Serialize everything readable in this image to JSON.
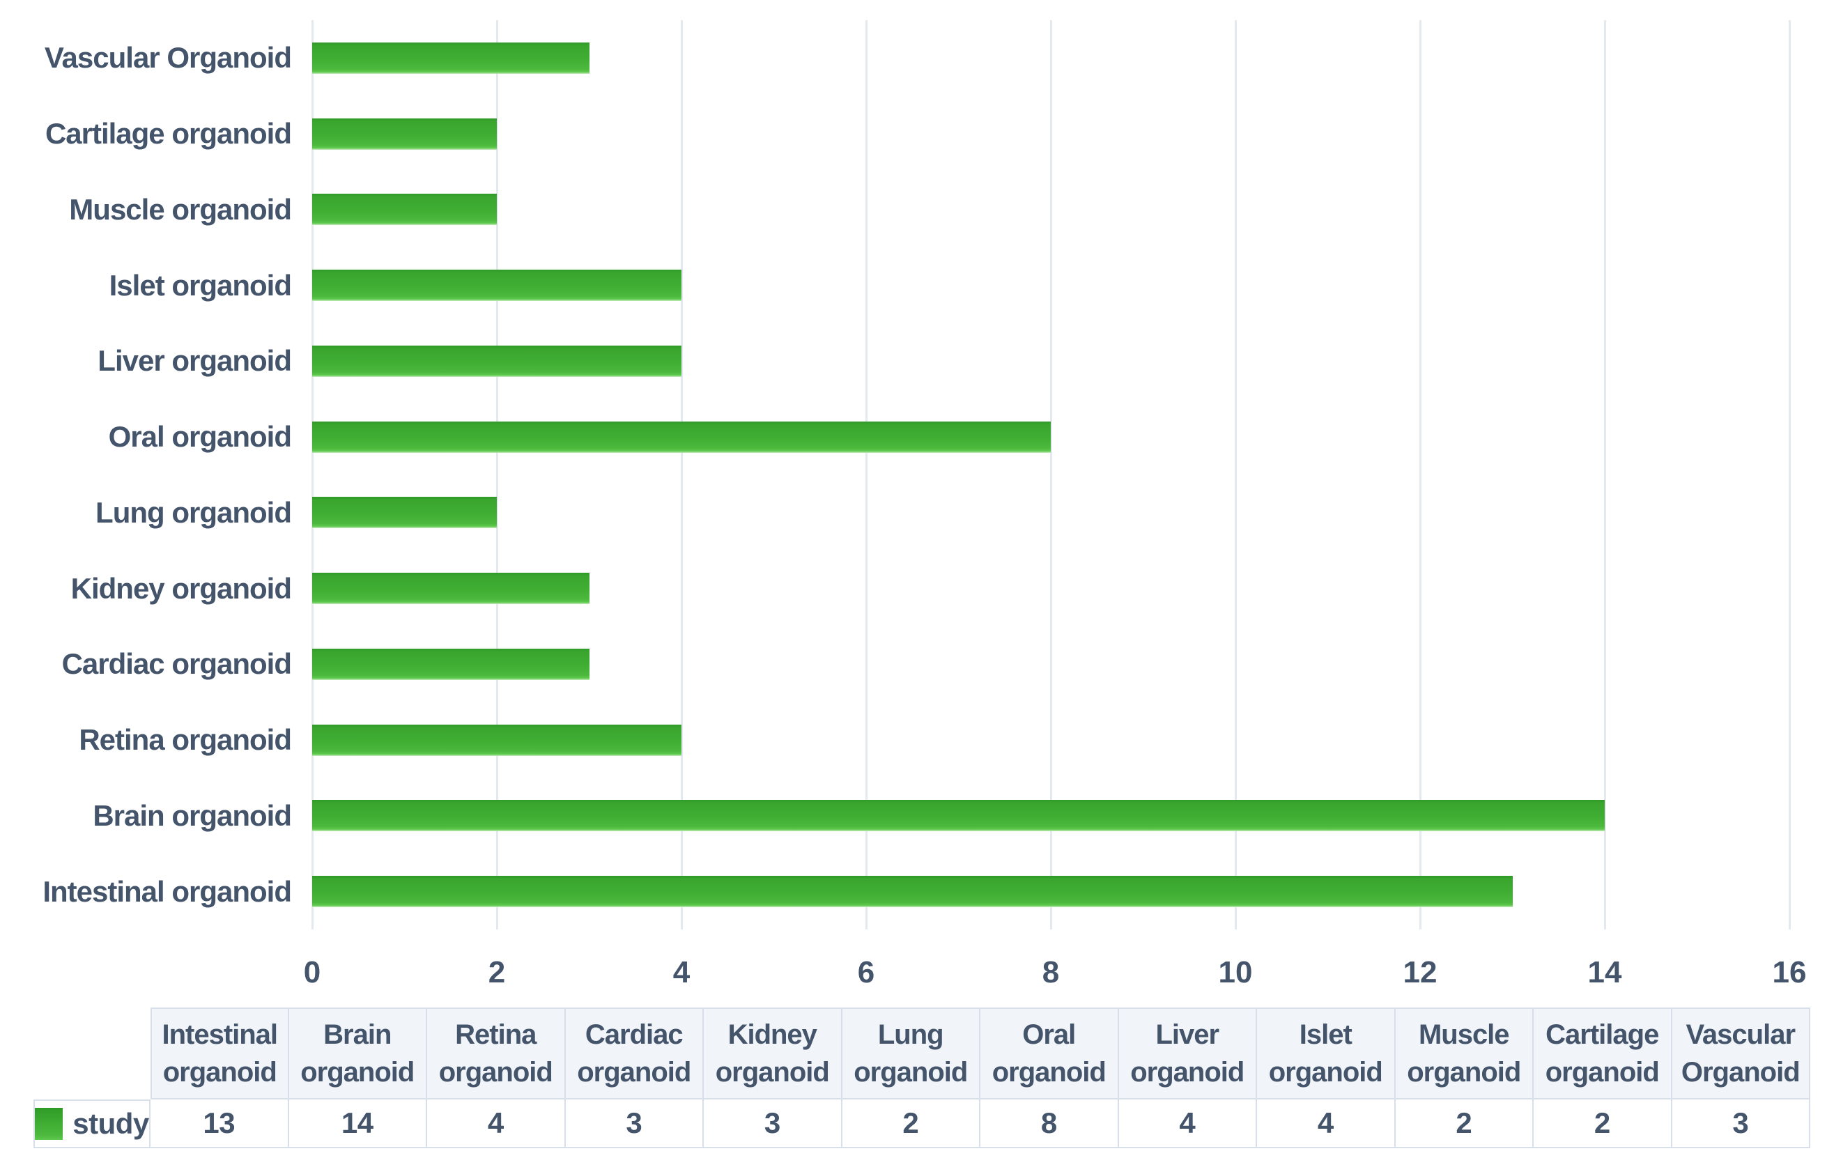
{
  "chart_data": {
    "type": "bar",
    "orientation": "horizontal",
    "title": "",
    "xlabel": "",
    "ylabel": "",
    "categories": [
      "Intestinal organoid",
      "Brain organoid",
      "Retina organoid",
      "Cardiac organoid",
      "Kidney organoid",
      "Lung organoid",
      "Oral organoid",
      "Liver organoid",
      "Islet organoid",
      "Muscle organoid",
      "Cartilage organoid",
      "Vascular Organoid"
    ],
    "series": [
      {
        "name": "study",
        "values": [
          13,
          14,
          4,
          3,
          3,
          2,
          8,
          4,
          4,
          2,
          2,
          3
        ]
      }
    ],
    "category_axis_order_top_to_bottom": [
      "Vascular Organoid",
      "Cartilage organoid",
      "Muscle organoid",
      "Islet organoid",
      "Liver organoid",
      "Oral organoid",
      "Lung organoid",
      "Kidney organoid",
      "Cardiac organoid",
      "Retina organoid",
      "Brain organoid",
      "Intestinal organoid"
    ],
    "xlim": [
      0,
      16
    ],
    "xticks": [
      0,
      2,
      4,
      6,
      8,
      10,
      12,
      14,
      16
    ],
    "grid": "vertical-only",
    "legend_position": "data-table-left",
    "data_table_shown": true,
    "colors": {
      "bar_green": "#3fae33",
      "bar_green_dark": "#2f9b27",
      "bar_green_light": "#5ec94e",
      "text": "#44546A",
      "gridline": "#e4e8ef",
      "table_border": "#d9dfe9",
      "table_header_bg": "#f1f4f8"
    }
  }
}
